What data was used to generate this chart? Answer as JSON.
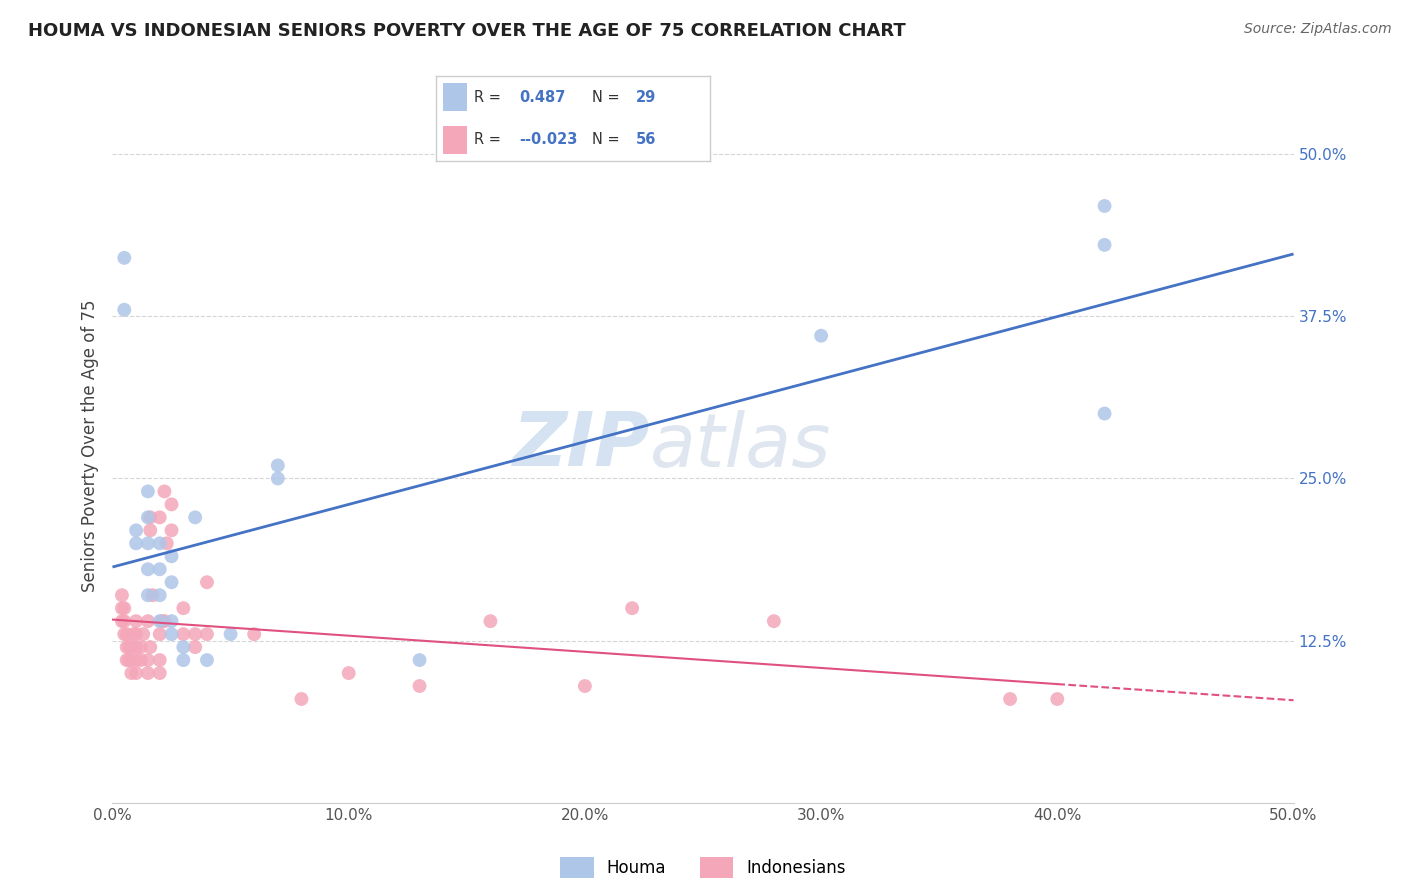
{
  "title": "HOUMA VS INDONESIAN SENIORS POVERTY OVER THE AGE OF 75 CORRELATION CHART",
  "source_text": "Source: ZipAtlas.com",
  "ylabel": "Seniors Poverty Over the Age of 75",
  "xlim": [
    0,
    0.5
  ],
  "ylim": [
    0.0,
    0.55
  ],
  "xticks": [
    0.0,
    0.1,
    0.2,
    0.3,
    0.4,
    0.5
  ],
  "yticks": [
    0.125,
    0.25,
    0.375,
    0.5
  ],
  "legend_labels": [
    "Houma",
    "Indonesians"
  ],
  "legend_r_houma": "0.487",
  "legend_n_houma": "29",
  "legend_r_indo": "-0.023",
  "legend_n_indo": "56",
  "houma_color": "#aec6e8",
  "indo_color": "#f4a7b9",
  "houma_line_color": "#4472c4",
  "indo_line_color": "#e05080",
  "background_color": "#ffffff",
  "grid_color": "#cccccc",
  "houma_x": [
    0.005,
    0.005,
    0.01,
    0.01,
    0.015,
    0.015,
    0.015,
    0.015,
    0.015,
    0.02,
    0.02,
    0.02,
    0.02,
    0.025,
    0.025,
    0.025,
    0.025,
    0.03,
    0.03,
    0.035,
    0.04,
    0.05,
    0.07,
    0.07,
    0.13,
    0.3,
    0.42,
    0.42,
    0.42
  ],
  "houma_y": [
    0.38,
    0.42,
    0.2,
    0.21,
    0.16,
    0.18,
    0.2,
    0.22,
    0.24,
    0.14,
    0.16,
    0.18,
    0.2,
    0.13,
    0.14,
    0.17,
    0.19,
    0.11,
    0.12,
    0.22,
    0.11,
    0.13,
    0.25,
    0.26,
    0.11,
    0.36,
    0.3,
    0.43,
    0.46
  ],
  "indo_x": [
    0.004,
    0.004,
    0.004,
    0.005,
    0.005,
    0.005,
    0.006,
    0.006,
    0.006,
    0.007,
    0.007,
    0.008,
    0.008,
    0.008,
    0.009,
    0.01,
    0.01,
    0.01,
    0.01,
    0.01,
    0.012,
    0.012,
    0.013,
    0.015,
    0.015,
    0.015,
    0.016,
    0.016,
    0.016,
    0.017,
    0.02,
    0.02,
    0.02,
    0.02,
    0.021,
    0.022,
    0.022,
    0.023,
    0.025,
    0.025,
    0.03,
    0.03,
    0.035,
    0.035,
    0.04,
    0.04,
    0.06,
    0.08,
    0.1,
    0.13,
    0.16,
    0.2,
    0.22,
    0.28,
    0.38,
    0.4
  ],
  "indo_y": [
    0.14,
    0.15,
    0.16,
    0.13,
    0.14,
    0.15,
    0.11,
    0.12,
    0.13,
    0.11,
    0.12,
    0.1,
    0.11,
    0.12,
    0.13,
    0.1,
    0.11,
    0.12,
    0.13,
    0.14,
    0.11,
    0.12,
    0.13,
    0.1,
    0.11,
    0.14,
    0.12,
    0.21,
    0.22,
    0.16,
    0.1,
    0.11,
    0.13,
    0.22,
    0.14,
    0.14,
    0.24,
    0.2,
    0.21,
    0.23,
    0.13,
    0.15,
    0.12,
    0.13,
    0.13,
    0.17,
    0.13,
    0.08,
    0.1,
    0.09,
    0.14,
    0.09,
    0.15,
    0.14,
    0.08,
    0.08
  ],
  "watermark_zip": "ZIP",
  "watermark_atlas": "atlas"
}
